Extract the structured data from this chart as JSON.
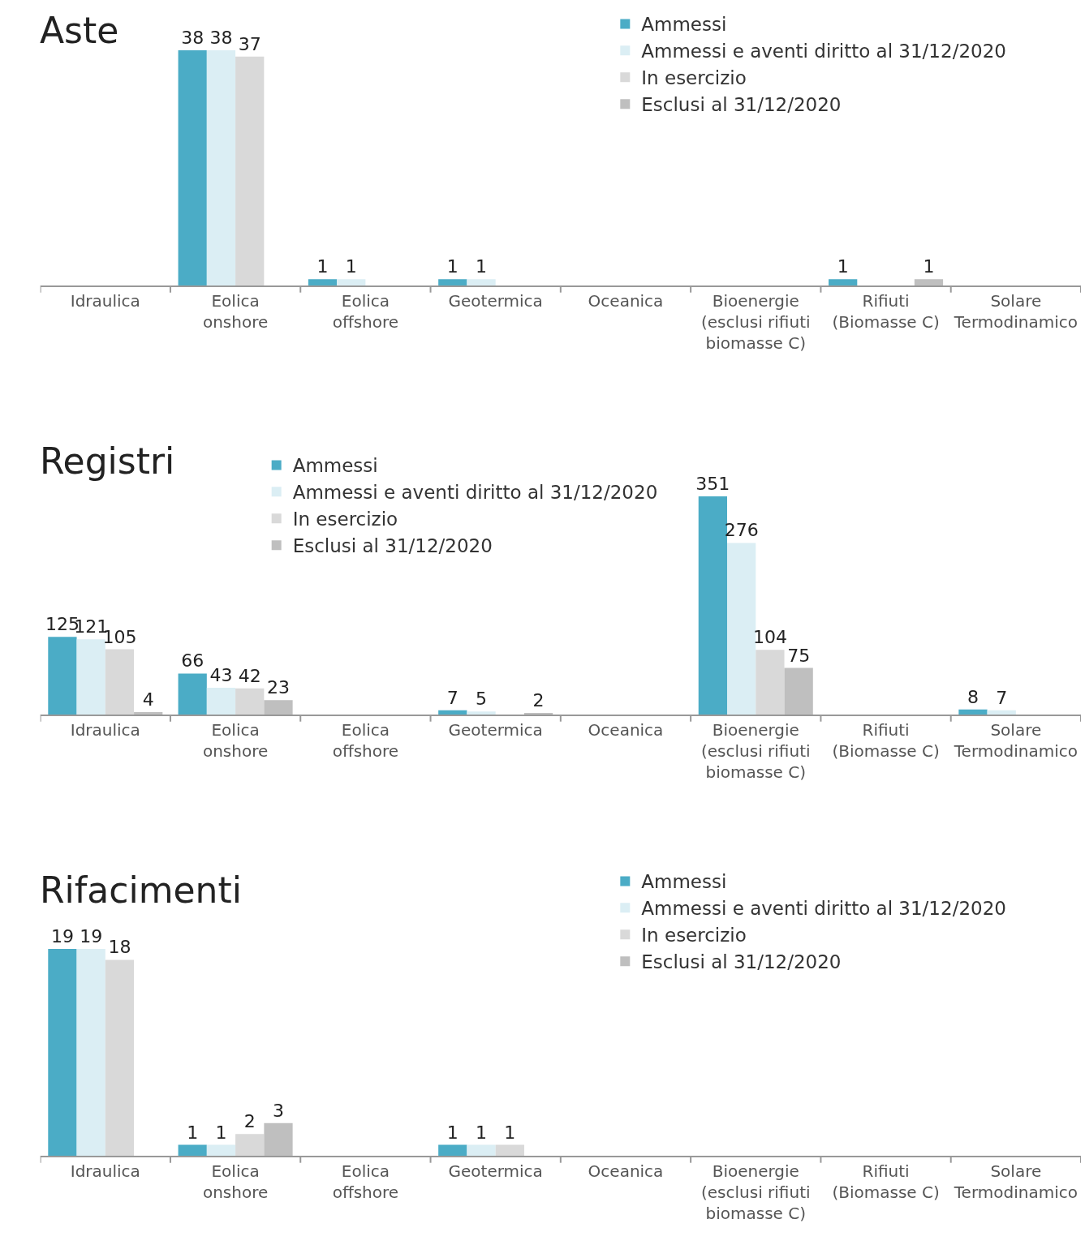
{
  "chart_data": [
    {
      "type": "bar",
      "title": "Aste",
      "categories": [
        "Idraulica",
        "Eolica\nonshore",
        "Eolica\noffshore",
        "Geotermica",
        "Oceanica",
        "Bioenergie\n(esclusi rifiuti\nbiomasse C)",
        "Rifiuti\n(Biomasse C)",
        "Solare\nTermodinamico"
      ],
      "series": [
        {
          "name": "Ammessi",
          "color": "#4bacc6",
          "values": [
            null,
            38,
            1,
            1,
            null,
            null,
            1,
            null
          ]
        },
        {
          "name": "Ammessi e aventi diritto al 31/12/2020",
          "color": "#dbeef4",
          "values": [
            null,
            38,
            1,
            1,
            null,
            null,
            null,
            null
          ]
        },
        {
          "name": "In esercizio",
          "color": "#d9d9d9",
          "values": [
            null,
            37,
            null,
            null,
            null,
            null,
            null,
            null
          ]
        },
        {
          "name": "Esclusi al 31/12/2020",
          "color": "#bfbfbf",
          "values": [
            null,
            null,
            null,
            null,
            null,
            null,
            1,
            null
          ]
        }
      ],
      "data_labels": true,
      "legend": "top right",
      "tick_labels": "x"
    },
    {
      "type": "bar",
      "title": "Registri",
      "categories": [
        "Idraulica",
        "Eolica\nonshore",
        "Eolica\noffshore",
        "Geotermica",
        "Oceanica",
        "Bioenergie\n(esclusi rifiuti\nbiomasse C)",
        "Rifiuti\n(Biomasse C)",
        "Solare\nTermodinamico"
      ],
      "series": [
        {
          "name": "Ammessi",
          "color": "#4bacc6",
          "values": [
            125,
            66,
            null,
            7,
            null,
            351,
            null,
            8
          ]
        },
        {
          "name": "Ammessi e aventi diritto al 31/12/2020",
          "color": "#dbeef4",
          "values": [
            121,
            43,
            null,
            5,
            null,
            276,
            null,
            7
          ]
        },
        {
          "name": "In esercizio",
          "color": "#d9d9d9",
          "values": [
            105,
            42,
            null,
            null,
            null,
            104,
            null,
            null
          ]
        },
        {
          "name": "Esclusi al 31/12/2020",
          "color": "#bfbfbf",
          "values": [
            4,
            23,
            null,
            2,
            null,
            75,
            null,
            null
          ]
        }
      ],
      "data_labels": true,
      "legend": "top",
      "tick_labels": "x"
    },
    {
      "type": "bar",
      "title": "Rifacimenti",
      "categories": [
        "Idraulica",
        "Eolica\nonshore",
        "Eolica\noffshore",
        "Geotermica",
        "Oceanica",
        "Bioenergie\n(esclusi rifiuti\nbiomasse C)",
        "Rifiuti\n(Biomasse C)",
        "Solare\nTermodinamico"
      ],
      "series": [
        {
          "name": "Ammessi",
          "color": "#4bacc6",
          "values": [
            19,
            1,
            null,
            1,
            null,
            null,
            null,
            null
          ]
        },
        {
          "name": "Ammessi e aventi diritto al 31/12/2020",
          "color": "#dbeef4",
          "values": [
            19,
            1,
            null,
            1,
            null,
            null,
            null,
            null
          ]
        },
        {
          "name": "In esercizio",
          "color": "#d9d9d9",
          "values": [
            18,
            2,
            null,
            1,
            null,
            null,
            null,
            null
          ]
        },
        {
          "name": "Esclusi al 31/12/2020",
          "color": "#bfbfbf",
          "values": [
            null,
            3,
            null,
            null,
            null,
            null,
            null,
            null
          ]
        }
      ],
      "data_labels": true,
      "legend": "top right",
      "tick_labels": "x"
    }
  ]
}
